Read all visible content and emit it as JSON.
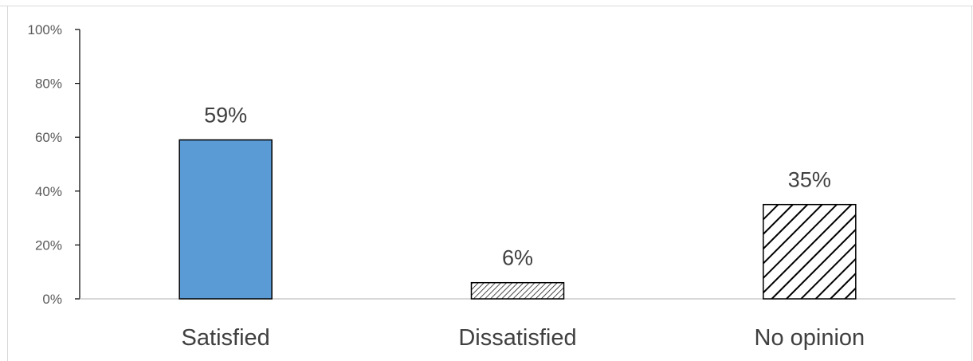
{
  "chart_data": {
    "type": "bar",
    "title": "",
    "xlabel": "",
    "ylabel": "",
    "categories": [
      "Satisfied",
      "Dissatisfied",
      "No opinion"
    ],
    "values": [
      59,
      6,
      35
    ],
    "data_labels": [
      "59%",
      "6%",
      "35%"
    ],
    "bar_styles": [
      "solid",
      "fine-hatch",
      "wide-hatch"
    ],
    "bar_fill_color": "#5b9bd5",
    "bar_border_color": "#000000",
    "ylim": [
      0,
      100
    ],
    "yticks": [
      0,
      20,
      40,
      60,
      80,
      100
    ],
    "ytick_labels": [
      "0%",
      "20%",
      "40%",
      "60%",
      "80%",
      "100%"
    ],
    "grid": false,
    "legend": "none"
  }
}
